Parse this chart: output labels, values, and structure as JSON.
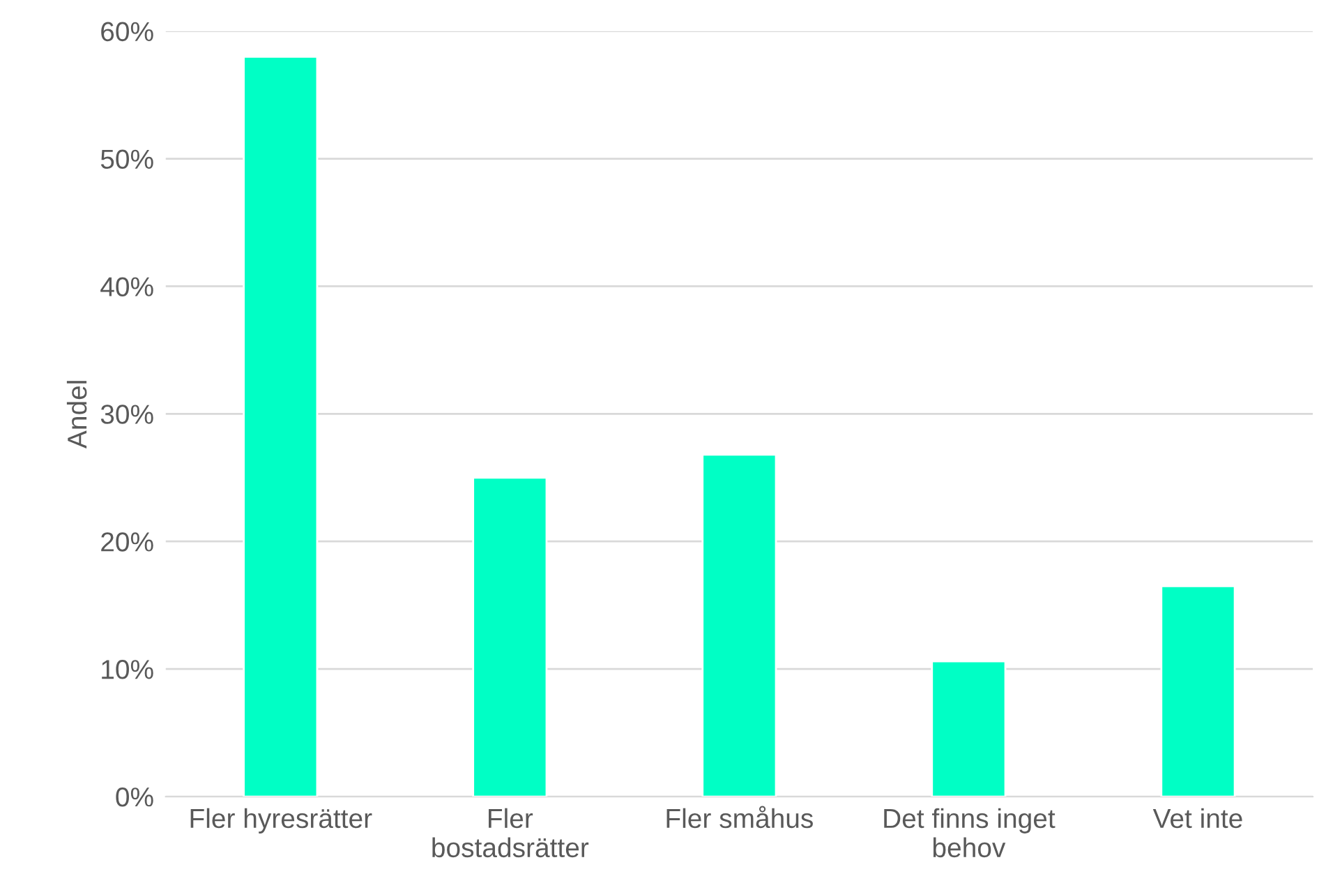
{
  "chart_data": {
    "type": "bar",
    "ylabel": "Andel",
    "categories": [
      "Fler hyresrätter",
      "Fler\nbostadsrätter",
      "Fler småhus",
      "Det finns inget\nbehov",
      "Vet inte"
    ],
    "values": [
      58.0,
      25.0,
      26.8,
      10.6,
      16.5
    ],
    "color": "#00ffc5",
    "ylim": [
      0,
      60
    ],
    "yticks": [
      {
        "value": 0,
        "label": "0%"
      },
      {
        "value": 10,
        "label": "10%"
      },
      {
        "value": 20,
        "label": "20%"
      },
      {
        "value": 30,
        "label": "30%"
      },
      {
        "value": 40,
        "label": "40%"
      },
      {
        "value": 50,
        "label": "50%"
      },
      {
        "value": 60,
        "label": "60%"
      }
    ],
    "grid": "y",
    "legend": false
  }
}
